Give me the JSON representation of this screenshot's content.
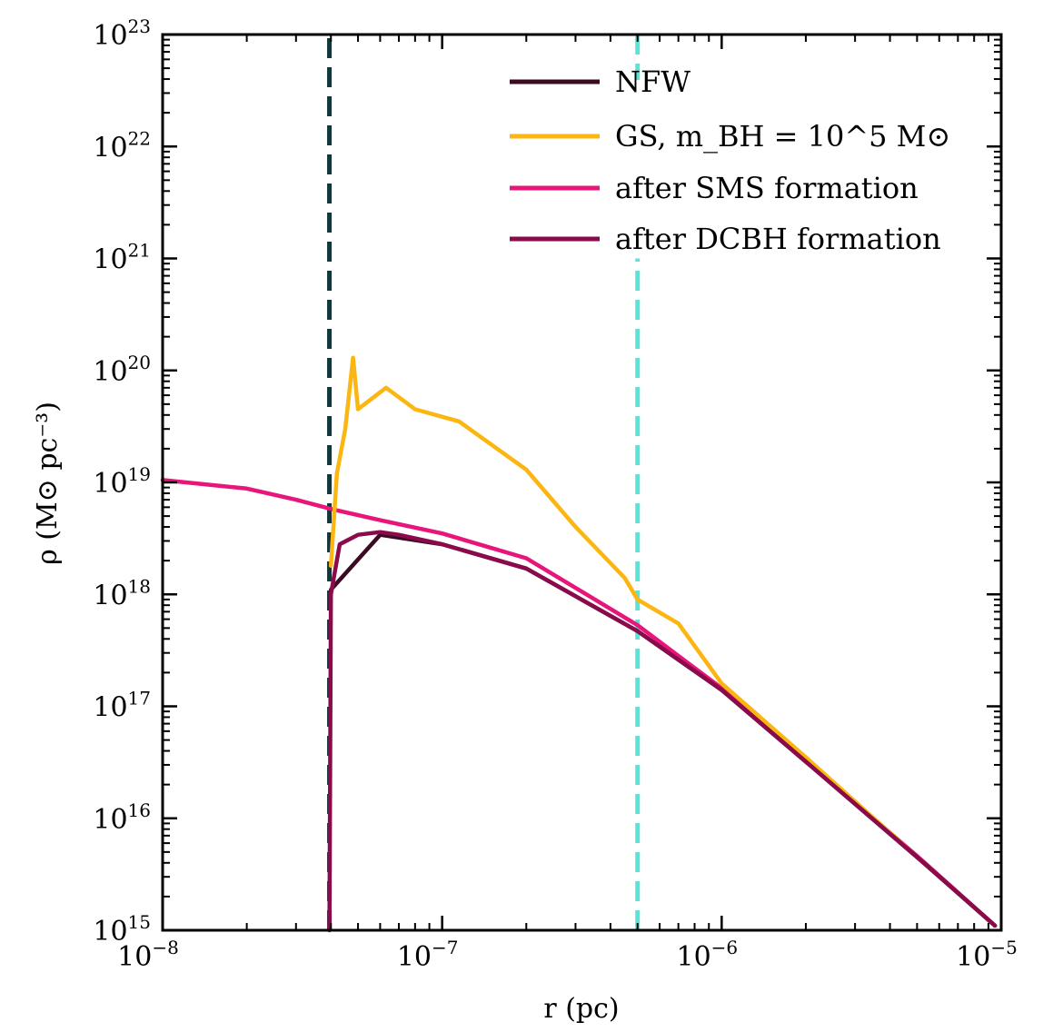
{
  "chart_data": {
    "type": "line",
    "xscale": "log",
    "yscale": "log",
    "xlim": [
      1e-08,
      1e-05
    ],
    "ylim": [
      1000000000000000.0,
      1e+23
    ],
    "xlabel": "r (pc)",
    "ylabel": "ρ (M⊙ pc⁻³)",
    "x_ticks": [
      {
        "base": "10",
        "exp": "−8",
        "value": 1e-08
      },
      {
        "base": "10",
        "exp": "−7",
        "value": 1e-07
      },
      {
        "base": "10",
        "exp": "−6",
        "value": 1e-06
      },
      {
        "base": "10",
        "exp": "−5",
        "value": 1e-05
      }
    ],
    "y_ticks": [
      {
        "base": "10",
        "exp": "15",
        "value": 1000000000000000.0
      },
      {
        "base": "10",
        "exp": "16",
        "value": 1e+16
      },
      {
        "base": "10",
        "exp": "17",
        "value": 1e+17
      },
      {
        "base": "10",
        "exp": "18",
        "value": 1e+18
      },
      {
        "base": "10",
        "exp": "19",
        "value": 1e+19
      },
      {
        "base": "10",
        "exp": "20",
        "value": 1e+20
      },
      {
        "base": "10",
        "exp": "21",
        "value": 1e+21
      },
      {
        "base": "10",
        "exp": "22",
        "value": 1e+22
      },
      {
        "base": "10",
        "exp": "23",
        "value": 1e+23
      }
    ],
    "legend_position": "top-right",
    "series": [
      {
        "name": "NFW",
        "color": "#3d0a24",
        "x": [
          4e-08,
          6e-08,
          1e-07,
          2e-07,
          5e-07,
          1e-06,
          2e-06,
          5e-06,
          9.5e-06
        ],
        "y": [
          1.1e+18,
          3.4e+18,
          2.8e+18,
          1.7e+18,
          4.7e+17,
          1.4e+17,
          3.2e+16,
          4500000000000000.0,
          1100000000000000.0
        ]
      },
      {
        "name": "GS, m_BH = 10^5 M⊙",
        "color": "#fbb612",
        "x": [
          4e-08,
          4.2e-08,
          4.5e-08,
          4.8e-08,
          5e-08,
          6.3e-08,
          8e-08,
          1.15e-07,
          2e-07,
          3e-07,
          4.5e-07,
          5e-07,
          7e-07,
          1e-06,
          2e-06,
          5e-06,
          9.5e-06
        ],
        "y": [
          1.8e+18,
          1.2e+19,
          3e+19,
          1.3e+20,
          4.5e+19,
          7e+19,
          4.5e+19,
          3.5e+19,
          1.3e+19,
          4e+18,
          1.4e+18,
          9e+17,
          5.5e+17,
          1.6e+17,
          3.5e+16,
          4500000000000000.0,
          1100000000000000.0
        ]
      },
      {
        "name": "after SMS formation",
        "color": "#e8157a",
        "x": [
          1e-08,
          2e-08,
          3e-08,
          4e-08,
          6e-08,
          1e-07,
          2e-07,
          5e-07,
          1e-06,
          2e-06,
          5e-06,
          9.5e-06
        ],
        "y": [
          1.05e+19,
          8.8e+18,
          7e+18,
          5.8e+18,
          4.6e+18,
          3.5e+18,
          2.1e+18,
          5.3e+17,
          1.45e+17,
          3.3e+16,
          4600000000000000.0,
          1100000000000000.0
        ]
      },
      {
        "name": "after DCBH formation",
        "color": "#8b0a4c",
        "x": [
          3.95e-08,
          4e-08,
          4.3e-08,
          5e-08,
          6e-08,
          7e-08,
          1e-07,
          2e-07,
          5e-07,
          1e-06,
          2e-06,
          5e-06,
          9.5e-06
        ],
        "y": [
          1000000000000000.0,
          1e+18,
          2.8e+18,
          3.4e+18,
          3.6e+18,
          3.4e+18,
          2.8e+18,
          1.7e+18,
          4.7e+17,
          1.4e+17,
          3.2e+16,
          4500000000000000.0,
          1100000000000000.0
        ]
      }
    ],
    "vlines": [
      {
        "x": 3.95e-08,
        "color": "#12363a",
        "ymin": 1000000000000000.0,
        "ymax": 1e+23
      },
      {
        "x": 5e-07,
        "color": "#5ce3d5",
        "ymin": 1000000000000000.0,
        "ymax": 1e+23,
        "gap": [
          1e+21,
          1e+23
        ]
      }
    ]
  }
}
